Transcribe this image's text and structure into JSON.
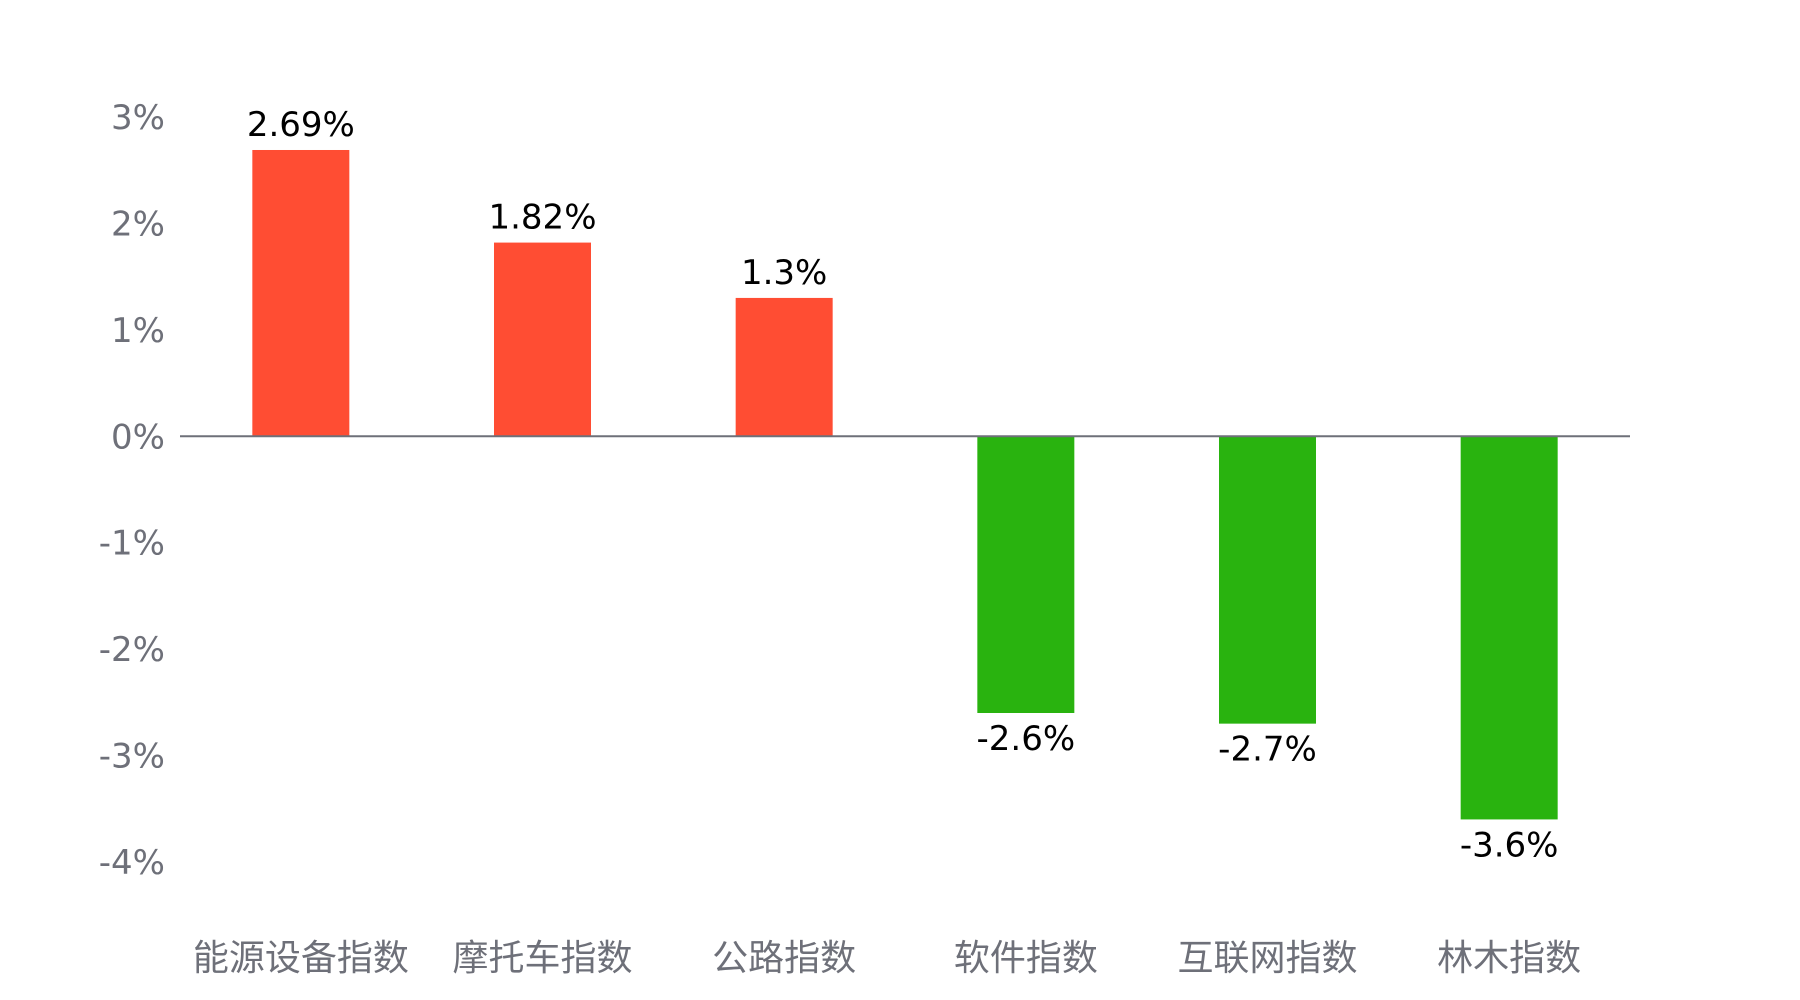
{
  "chart_data": {
    "type": "bar",
    "title": "",
    "xlabel": "",
    "ylabel": "",
    "categories": [
      "能源设备指数",
      "摩托车指数",
      "公路指数",
      "软件指数",
      "互联网指数",
      "林木指数"
    ],
    "values": [
      2.69,
      1.82,
      1.3,
      -2.6,
      -2.7,
      -3.6
    ],
    "value_labels": [
      "2.69%",
      "1.82%",
      "1.3%",
      "-2.6%",
      "-2.7%",
      "-3.6%"
    ],
    "ylim": [
      -4,
      3
    ],
    "y_ticks": [
      3,
      2,
      1,
      0,
      -1,
      -2,
      -3,
      -4
    ],
    "y_tick_labels": [
      "3%",
      "2%",
      "1%",
      "0%",
      "-1%",
      "-2%",
      "-3%",
      "-4%"
    ],
    "grid": false,
    "legend": "none",
    "colors": {
      "positive": "#ff4d33",
      "negative": "#29b30f",
      "axis": "#6e7079",
      "label": "#000000"
    }
  }
}
